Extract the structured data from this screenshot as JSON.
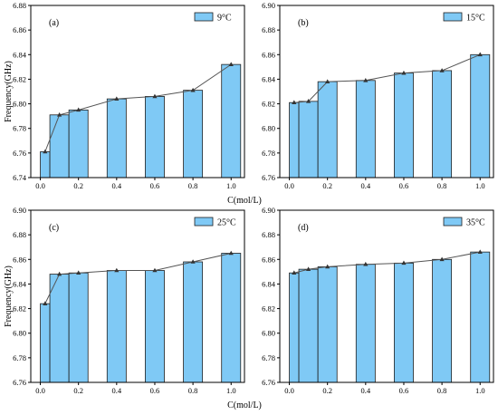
{
  "colors": {
    "bar_fill": "#7fc9f5",
    "bar_edge": "#1f1f1f",
    "line": "#555555",
    "marker": "#333333"
  },
  "chart_data": [
    {
      "type": "bar",
      "panel_label": "(a)",
      "legend": "9°C",
      "xlabel": "",
      "ylabel": "Frequency(GHz)",
      "x": [
        0.025,
        0.1,
        0.2,
        0.4,
        0.6,
        0.8,
        1.0
      ],
      "values": [
        6.761,
        6.791,
        6.795,
        6.804,
        6.806,
        6.811,
        6.832
      ],
      "ylim": [
        6.74,
        6.88
      ],
      "yticks": [
        "6.74",
        "6.76",
        "6.78",
        "6.80",
        "6.82",
        "6.84",
        "6.86",
        "6.88"
      ],
      "xlim": [
        -0.05,
        1.07
      ],
      "xticks": [
        "0.0",
        "0.2",
        "0.4",
        "0.6",
        "0.8",
        "1.0"
      ]
    },
    {
      "type": "bar",
      "panel_label": "(b)",
      "legend": "15°C",
      "xlabel": "C(mol/L)",
      "ylabel": "",
      "x": [
        0.025,
        0.1,
        0.2,
        0.4,
        0.6,
        0.8,
        1.0
      ],
      "values": [
        6.821,
        6.822,
        6.838,
        6.839,
        6.845,
        6.847,
        6.86
      ],
      "ylim": [
        6.76,
        6.9
      ],
      "yticks": [
        "6.76",
        "6.78",
        "6.80",
        "6.82",
        "6.84",
        "6.86",
        "6.88",
        "6.90"
      ],
      "xlim": [
        -0.05,
        1.07
      ],
      "xticks": [
        "0.0",
        "0.2",
        "0.4",
        "0.6",
        "0.8",
        "1.0"
      ]
    },
    {
      "type": "bar",
      "panel_label": "(c)",
      "legend": "25°C",
      "xlabel": "",
      "ylabel": "Frequency(GHz)",
      "x": [
        0.025,
        0.1,
        0.2,
        0.4,
        0.6,
        0.8,
        1.0
      ],
      "values": [
        6.824,
        6.848,
        6.849,
        6.851,
        6.851,
        6.858,
        6.865
      ],
      "ylim": [
        6.76,
        6.9
      ],
      "yticks": [
        "6.76",
        "6.78",
        "6.80",
        "6.82",
        "6.84",
        "6.86",
        "6.88",
        "6.90"
      ],
      "xlim": [
        -0.05,
        1.07
      ],
      "xticks": [
        "0.0",
        "0.2",
        "0.4",
        "0.6",
        "0.8",
        "1.0"
      ]
    },
    {
      "type": "bar",
      "panel_label": "(d)",
      "legend": "35°C",
      "xlabel": "C(mol/L)",
      "ylabel": "",
      "x": [
        0.025,
        0.1,
        0.2,
        0.4,
        0.6,
        0.8,
        1.0
      ],
      "values": [
        6.849,
        6.852,
        6.854,
        6.856,
        6.857,
        6.86,
        6.866
      ],
      "ylim": [
        6.76,
        6.9
      ],
      "yticks": [
        "6.76",
        "6.78",
        "6.80",
        "6.82",
        "6.84",
        "6.86",
        "6.88",
        "6.90"
      ],
      "xlim": [
        -0.05,
        1.07
      ],
      "xticks": [
        "0.0",
        "0.2",
        "0.4",
        "0.6",
        "0.8",
        "1.0"
      ]
    }
  ]
}
